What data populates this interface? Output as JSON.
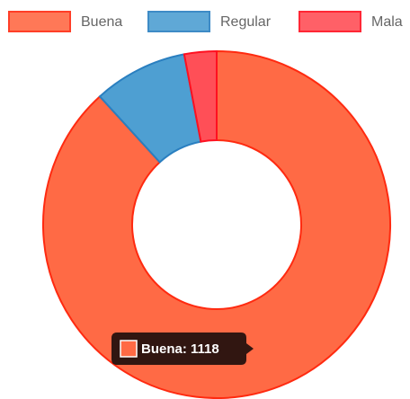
{
  "chart_data": {
    "type": "doughnut",
    "categories": [
      "Buena",
      "Regular",
      "Mala"
    ],
    "values": [
      1118,
      111,
      38
    ],
    "colors": [
      "#ff6a45",
      "#4e9fd2",
      "#ff4f57"
    ],
    "borders": [
      "#ff2a10",
      "#2a7fc0",
      "#ff1020"
    ],
    "legend": "top",
    "tooltip": "Buena: 1118"
  }
}
